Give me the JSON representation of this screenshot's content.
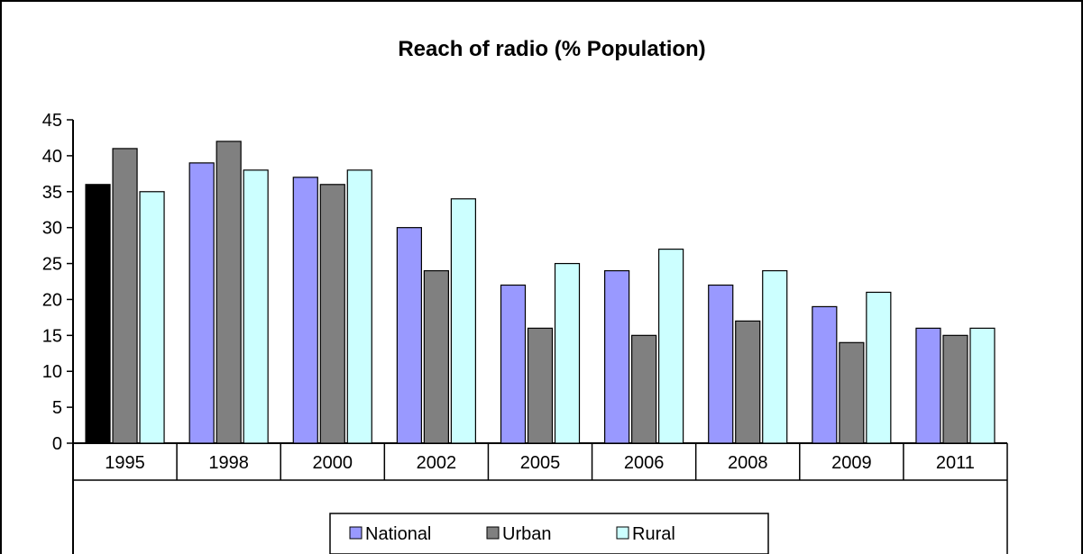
{
  "chart_data": {
    "type": "bar",
    "title": "Reach of radio (% Population)",
    "xlabel": "",
    "ylabel": "",
    "categories": [
      "1995",
      "1998",
      "2000",
      "2002",
      "2005",
      "2006",
      "2008",
      "2009",
      "2011"
    ],
    "series": [
      {
        "name": "National",
        "color": "#9999ff",
        "values": [
          36,
          39,
          37,
          30,
          22,
          24,
          22,
          19,
          16
        ]
      },
      {
        "name": "Urban",
        "color": "#808080",
        "values": [
          41,
          42,
          36,
          24,
          16,
          15,
          17,
          14,
          15
        ]
      },
      {
        "name": "Rural",
        "color": "#ccffff",
        "values": [
          35,
          38,
          38,
          34,
          25,
          27,
          24,
          21,
          16
        ]
      }
    ],
    "highlight": {
      "series": 0,
      "category": 0,
      "color": "#000000"
    },
    "ylim": [
      0,
      45
    ],
    "yticks": [
      0,
      5,
      10,
      15,
      20,
      25,
      30,
      35,
      40,
      45
    ],
    "grid": false,
    "legend": "bottom"
  }
}
